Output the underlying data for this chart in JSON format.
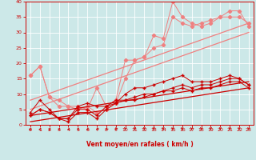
{
  "xlabel": "Vent moyen/en rafales ( km/h )",
  "xlim": [
    -0.5,
    23.5
  ],
  "ylim": [
    0,
    40
  ],
  "xticks": [
    0,
    1,
    2,
    3,
    4,
    5,
    6,
    7,
    8,
    9,
    10,
    11,
    12,
    13,
    14,
    15,
    16,
    17,
    18,
    19,
    20,
    21,
    22,
    23
  ],
  "yticks": [
    0,
    5,
    10,
    15,
    20,
    25,
    30,
    35,
    40
  ],
  "bg_color": "#cce8e8",
  "grid_color": "#b0d8d8",
  "lc": "#f08080",
  "dc": "#cc0000",
  "pink_zigzag1_x": [
    0,
    1,
    2,
    3,
    4,
    5,
    6,
    7,
    8,
    9,
    10,
    11,
    12,
    13,
    14,
    15,
    16,
    17,
    18,
    19,
    20,
    21,
    22,
    23
  ],
  "pink_zigzag1_y": [
    16,
    19,
    9,
    8,
    6,
    6,
    5,
    12,
    6,
    8,
    21,
    21,
    22,
    29,
    28,
    40,
    35,
    33,
    32,
    33,
    35,
    37,
    37,
    32
  ],
  "pink_zigzag2_x": [
    0,
    1,
    2,
    3,
    4,
    5,
    6,
    7,
    8,
    9,
    10,
    11,
    12,
    13,
    14,
    15,
    16,
    17,
    18,
    19,
    20,
    21,
    22,
    23
  ],
  "pink_zigzag2_y": [
    16,
    19,
    9,
    6,
    6,
    5,
    6,
    4,
    5,
    7,
    15,
    21,
    22,
    25,
    26,
    35,
    33,
    32,
    33,
    34,
    35,
    35,
    35,
    33
  ],
  "pink_trend1_x": [
    0,
    23
  ],
  "pink_trend1_y": [
    8,
    33
  ],
  "pink_trend2_x": [
    0,
    23
  ],
  "pink_trend2_y": [
    5,
    30
  ],
  "red_zigzag1_x": [
    0,
    1,
    2,
    3,
    4,
    5,
    6,
    7,
    8,
    9,
    10,
    11,
    12,
    13,
    14,
    15,
    16,
    17,
    18,
    19,
    20,
    21,
    22,
    23
  ],
  "red_zigzag1_y": [
    4,
    8,
    5,
    2,
    2,
    6,
    7,
    6,
    6,
    7,
    10,
    12,
    12,
    13,
    14,
    15,
    16,
    14,
    14,
    14,
    15,
    16,
    15,
    13
  ],
  "red_zigzag2_x": [
    0,
    1,
    2,
    3,
    4,
    5,
    6,
    7,
    8,
    9,
    10,
    11,
    12,
    13,
    14,
    15,
    16,
    17,
    18,
    19,
    20,
    21,
    22,
    23
  ],
  "red_zigzag2_y": [
    3,
    5,
    4,
    2,
    2,
    5,
    5,
    3,
    6,
    8,
    8,
    9,
    10,
    10,
    11,
    12,
    13,
    12,
    13,
    13,
    14,
    15,
    15,
    13
  ],
  "red_zigzag3_x": [
    0,
    1,
    2,
    3,
    4,
    5,
    6,
    7,
    8,
    9,
    10,
    11,
    12,
    13,
    14,
    15,
    16,
    17,
    18,
    19,
    20,
    21,
    22,
    23
  ],
  "red_zigzag3_y": [
    3,
    5,
    4,
    2,
    1,
    4,
    4,
    2,
    5,
    7,
    8,
    8,
    9,
    10,
    11,
    11,
    12,
    11,
    12,
    12,
    13,
    14,
    14,
    12
  ],
  "red_trend1_x": [
    0,
    23
  ],
  "red_trend1_y": [
    3,
    14
  ],
  "red_trend2_x": [
    0,
    23
  ],
  "red_trend2_y": [
    1,
    12
  ],
  "arrows_x": [
    0,
    1,
    2,
    3,
    4,
    5,
    6,
    7,
    8,
    9,
    10,
    11,
    12,
    13,
    14,
    15,
    16,
    17,
    18,
    19,
    20,
    21,
    22,
    23
  ],
  "arrow_angles": [
    -60,
    -55,
    -50,
    -45,
    -40,
    -40,
    -35,
    -30,
    -20,
    -10,
    0,
    0,
    0,
    0,
    0,
    0,
    0,
    0,
    0,
    0,
    0,
    0,
    0,
    0
  ]
}
